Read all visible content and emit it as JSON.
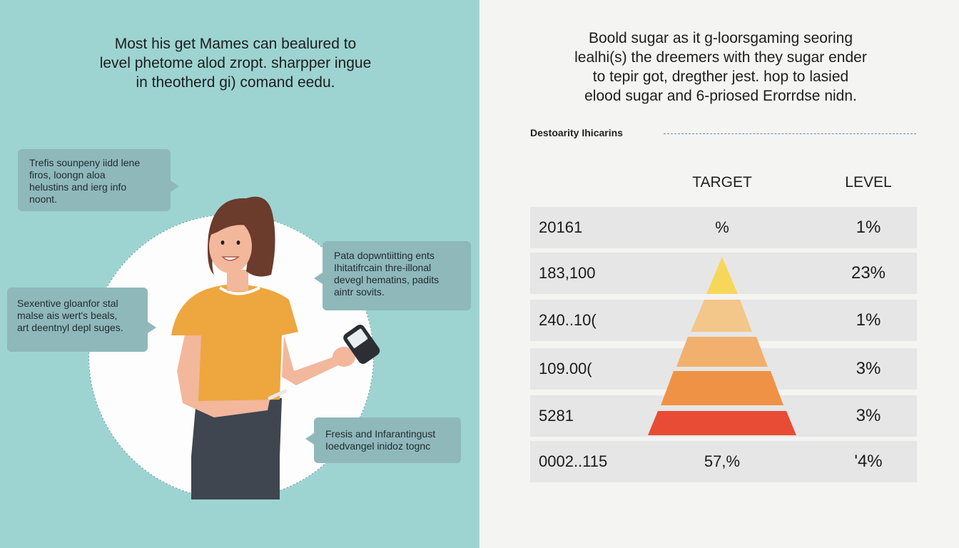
{
  "left_panel": {
    "headline": [
      "Most his get Mames can bealured to",
      "level phetome alod zropt. sharpper ingue",
      "in theotherd gi) comand eedu."
    ],
    "callouts": [
      {
        "lines": [
          "Trefis sounpeny iidd lene",
          "firos, loongn aloa",
          "helustins and ierg info",
          "noont."
        ]
      },
      {
        "lines": [
          "Pata dopwntiitting ents",
          "Ihitatifrcain thre-illonal",
          "devegl hematins, padits",
          "aintr sovits."
        ]
      },
      {
        "lines": [
          "Sexentive gloanfor stal",
          "malse ais wert's beals,",
          "art deentnyl depl suges."
        ]
      },
      {
        "lines": [
          "Fresis and Infarantingust",
          "Ioedvangel inidoz tognc"
        ]
      }
    ]
  },
  "right_panel": {
    "headline": [
      "Boold sugar as it g-loorsgaming seoring",
      "lealhi(s) the dreemers with they sugar ender",
      "to tepir got, dregther jest. hop to lasied",
      "elood sugar and 6-priosed Erorrdse nidn."
    ],
    "section_label": "Destoarity Ihicarins",
    "table": {
      "headers": {
        "target": "TARGET",
        "level": "LEVEL"
      },
      "rows": [
        {
          "label": "20161",
          "target": "%",
          "level": "1%"
        },
        {
          "label": "183,100",
          "target": "",
          "level": "23%"
        },
        {
          "label": "240..10(",
          "target": "",
          "level": "1%"
        },
        {
          "label": "109.00(",
          "target": "",
          "level": "3%"
        },
        {
          "label": "5281",
          "target": "",
          "level": "3%"
        },
        {
          "label": "0002..115",
          "target": "57,%",
          "level": "'4%"
        }
      ]
    }
  },
  "colors": {
    "left_bg": "#9dd4d2",
    "right_bg": "#f4f4f2",
    "callout_bg": "#8fb8bb",
    "row_bg": "#e6e6e6",
    "pyramid": [
      "#f7d75a",
      "#f3c68a",
      "#f1b06e",
      "#ef9246",
      "#e84c34"
    ]
  }
}
